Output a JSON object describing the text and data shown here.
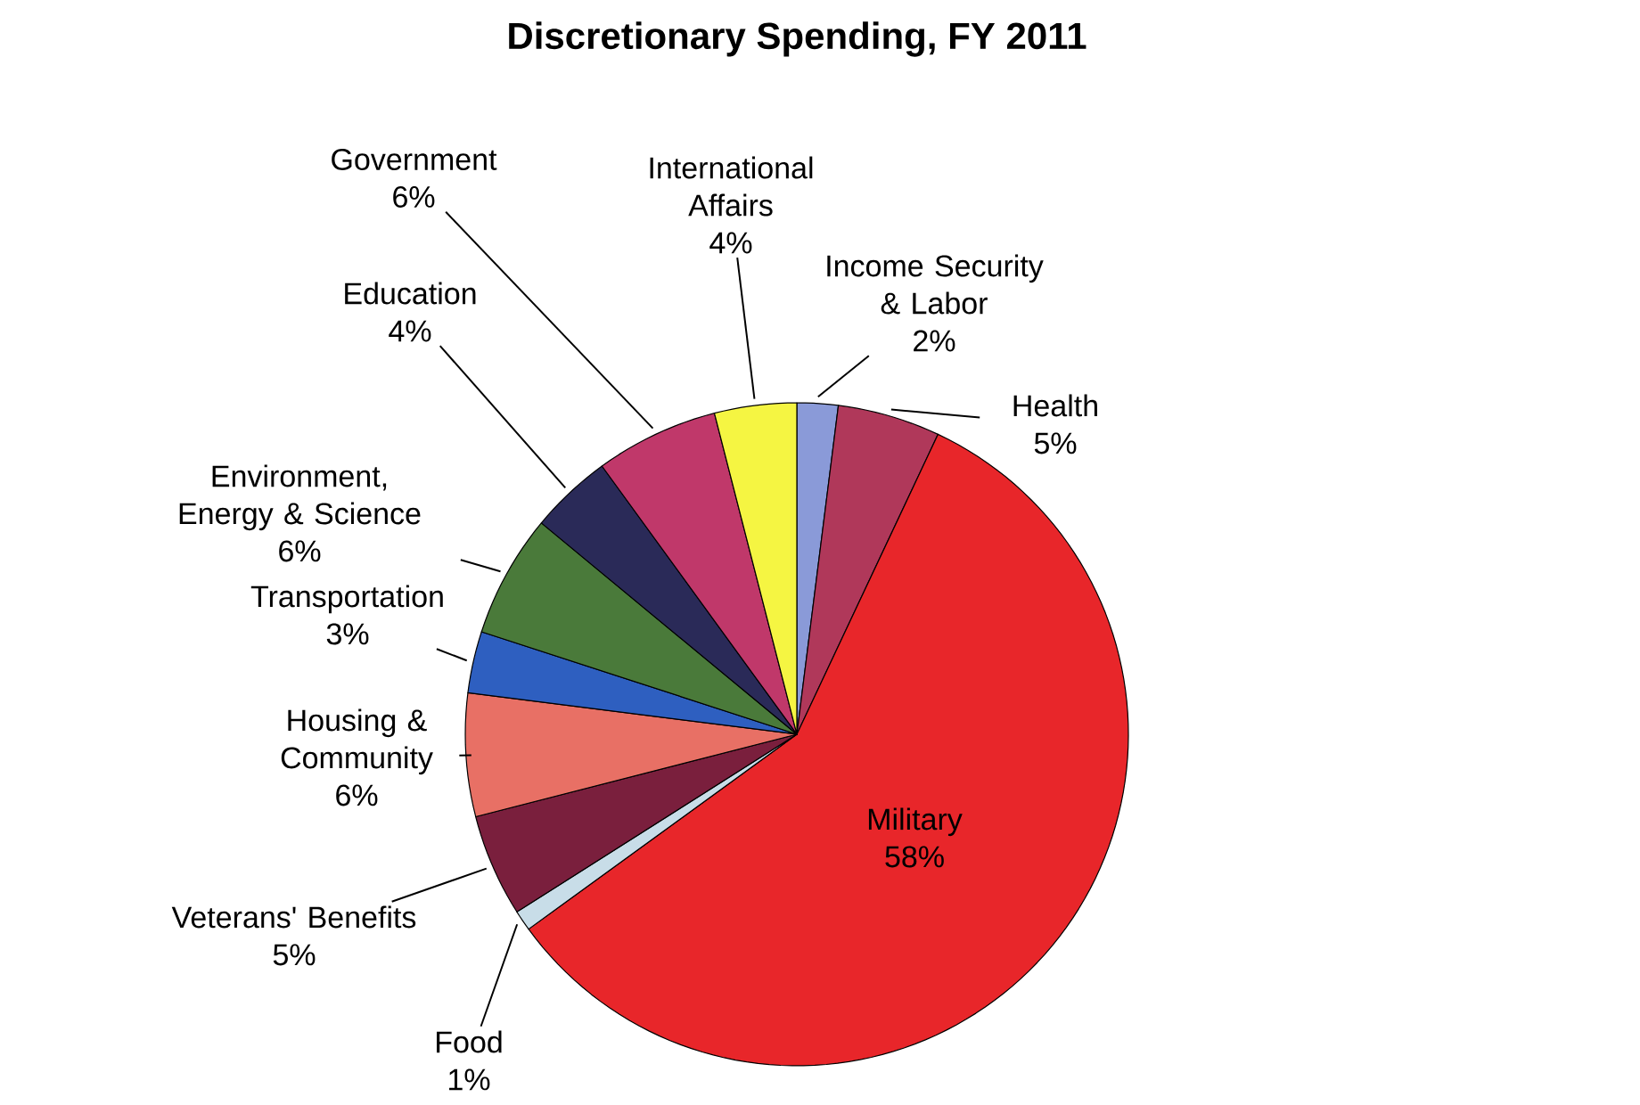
{
  "chart_data": {
    "type": "pie",
    "title": "Discretionary Spending, FY 2011",
    "categories": [
      "Income Security & Labor",
      "Health",
      "Military",
      "Food",
      "Veterans' Benefits",
      "Housing & Community",
      "Transportation",
      "Environment, Energy & Science",
      "Education",
      "Government",
      "International Affairs"
    ],
    "values": [
      2,
      5,
      58,
      1,
      5,
      6,
      3,
      6,
      4,
      6,
      4
    ],
    "value_labels": [
      "2%",
      "5%",
      "58%",
      "1%",
      "5%",
      "6%",
      "3%",
      "6%",
      "4%",
      "6%",
      "4%"
    ],
    "colors": [
      "#8a9ad8",
      "#b0385a",
      "#e8262a",
      "#c8dde8",
      "#7a1f3d",
      "#e87065",
      "#2e5fc0",
      "#4a7a3a",
      "#2a2a58",
      "#c0386a",
      "#f5f542"
    ]
  }
}
